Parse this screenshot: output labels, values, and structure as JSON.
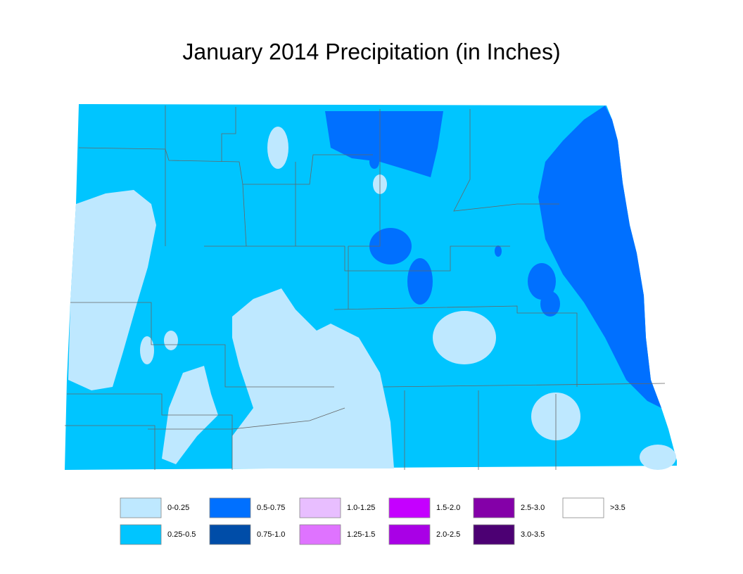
{
  "title": "January 2014 Precipitation (in Inches)",
  "legend": [
    {
      "label": "0-0.25",
      "color": "#bee8ff"
    },
    {
      "label": "0.25-0.5",
      "color": "#00c5ff"
    },
    {
      "label": "0.5-0.75",
      "color": "#0070ff"
    },
    {
      "label": "0.75-1.0",
      "color": "#004da8"
    },
    {
      "label": "1.0-1.25",
      "color": "#e8beff"
    },
    {
      "label": "1.25-1.5",
      "color": "#df73ff"
    },
    {
      "label": "1.5-2.0",
      "color": "#c500ff"
    },
    {
      "label": "2.0-2.5",
      "color": "#a900e6"
    },
    {
      "label": "2.5-3.0",
      "color": "#8400a8"
    },
    {
      "label": "3.0-3.5",
      "color": "#4c0073"
    },
    {
      "label": ">3.5",
      "color": "#ffffff"
    }
  ]
}
